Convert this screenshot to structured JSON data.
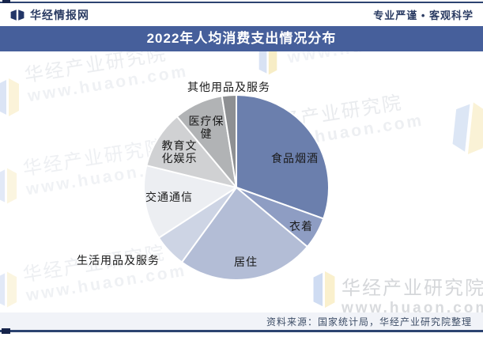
{
  "header": {
    "site_name": "华经情报网",
    "tagline": "专业严谨 • 客观科学",
    "title": "2022年人均消费支出情况分布"
  },
  "chart_data": {
    "type": "pie",
    "title": "2022年人均消费支出情况分布",
    "categories": [
      "食品烟酒",
      "衣着",
      "居住",
      "生活用品及服务",
      "交通通信",
      "教育文化娱乐",
      "医疗保健",
      "其他用品及服务"
    ],
    "values": [
      30.5,
      5.6,
      24.0,
      5.8,
      13.0,
      10.1,
      8.6,
      2.5
    ],
    "unit": "percent (estimated from slice angles; no numeric labels shown)",
    "colors": [
      "#6b7fad",
      "#8e9dc3",
      "#b3bdd6",
      "#cdd4e4",
      "#eceef2",
      "#d0d1d3",
      "#b1b3b5",
      "#8e9093"
    ],
    "start_angle": "12 o'clock, clockwise",
    "legend": "none",
    "label_style": "category names only, black text, inside large slices / outside small slices"
  },
  "watermark": {
    "brand": "华经产业研究院",
    "url": "www.huaon.com"
  },
  "footer": {
    "source": "资料来源：国家统计局，华经产业研究院整理"
  }
}
